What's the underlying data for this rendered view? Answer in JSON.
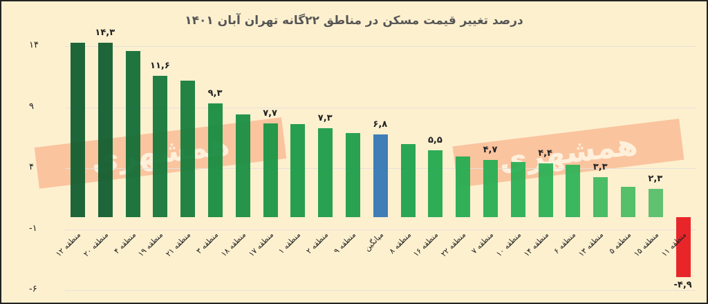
{
  "chart_data": {
    "type": "bar",
    "title": "درصد تغییر قیمت مسکن در مناطق ۲۲گانه تهران  آبان ۱۴۰۱",
    "xlabel": "",
    "ylabel": "",
    "ylim": [
      -6,
      14
    ],
    "yticks": [
      14,
      9,
      4,
      -1,
      -6
    ],
    "ytick_labels": [
      "۱۴",
      "۹",
      "۴",
      "-۱",
      "-۶"
    ],
    "grid": true,
    "categories": [
      "منطقه ۱۲",
      "منطقه ۲۰",
      "منطقه ۴",
      "منطقه ۱۹",
      "منطقه ۲۱",
      "منطقه ۳",
      "منطقه ۱۸",
      "منطقه ۱۷",
      "منطقه ۱",
      "منطقه ۲",
      "منطقه ۹",
      "میانگین",
      "منطقه ۸",
      "منطقه ۱۶",
      "منطقه ۲۲",
      "منطقه ۷",
      "منطقه ۱۰",
      "منطقه ۱۴",
      "منطقه ۶",
      "منطقه ۱۳",
      "منطقه ۵",
      "منطقه ۱۵",
      "منطقه ۱۱"
    ],
    "values": [
      14.3,
      14.3,
      13.6,
      11.6,
      11.2,
      9.3,
      8.4,
      7.7,
      7.6,
      7.3,
      6.9,
      6.8,
      6.0,
      5.5,
      5.0,
      4.7,
      4.5,
      4.4,
      4.3,
      3.3,
      2.5,
      2.3,
      -4.9
    ],
    "data_labels": [
      {
        "index": 1,
        "text": "۱۴,۳"
      },
      {
        "index": 3,
        "text": "۱۱,۶"
      },
      {
        "index": 5,
        "text": "۹,۳"
      },
      {
        "index": 7,
        "text": "۷,۷"
      },
      {
        "index": 9,
        "text": "۷,۳"
      },
      {
        "index": 11,
        "text": "۶,۸"
      },
      {
        "index": 13,
        "text": "۵,۵"
      },
      {
        "index": 15,
        "text": "۴,۷"
      },
      {
        "index": 17,
        "text": "۴,۴"
      },
      {
        "index": 19,
        "text": "۳,۳"
      },
      {
        "index": 21,
        "text": "۲,۳"
      },
      {
        "index": 22,
        "text": "-۴,۹"
      }
    ],
    "colors": [
      "#0b5a2c",
      "#0b5a2c",
      "#0d6a33",
      "#0f7436",
      "#0f7a38",
      "#118a3e",
      "#138c40",
      "#159442",
      "#159844",
      "#169a45",
      "#179c46",
      "#2f74b5",
      "#19a04a",
      "#1ca64c",
      "#20aa4e",
      "#22ac50",
      "#24ae52",
      "#26b054",
      "#2ab256",
      "#3db85e",
      "#46bb62",
      "#52be68",
      "#e8262a"
    ],
    "highlight": {
      "category": "میانگین",
      "color": "#2f74b5"
    },
    "negative_color": "#e8262a"
  },
  "watermark": {
    "text": "همشهری"
  }
}
